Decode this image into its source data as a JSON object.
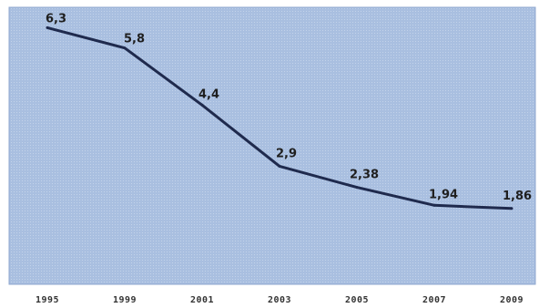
{
  "chart_data": {
    "type": "line",
    "title": "",
    "xlabel": "",
    "ylabel": "",
    "categories": [
      "1995",
      "1999",
      "2001",
      "2003",
      "2005",
      "2007",
      "2009"
    ],
    "series": [
      {
        "values": [
          6.3,
          5.8,
          4.4,
          2.9,
          2.38,
          1.94,
          1.86
        ],
        "labels": [
          "6,3",
          "5,8",
          "4,4",
          "2,9",
          "2,38",
          "1,94",
          "1,86"
        ]
      }
    ],
    "ylim": [
      0,
      6.8
    ],
    "grid": false,
    "legend": "none",
    "colors": {
      "plot_background": "#a9bfe0",
      "line": "#1f2a4d",
      "label": "#1f1f1f",
      "tick": "#333333"
    }
  }
}
